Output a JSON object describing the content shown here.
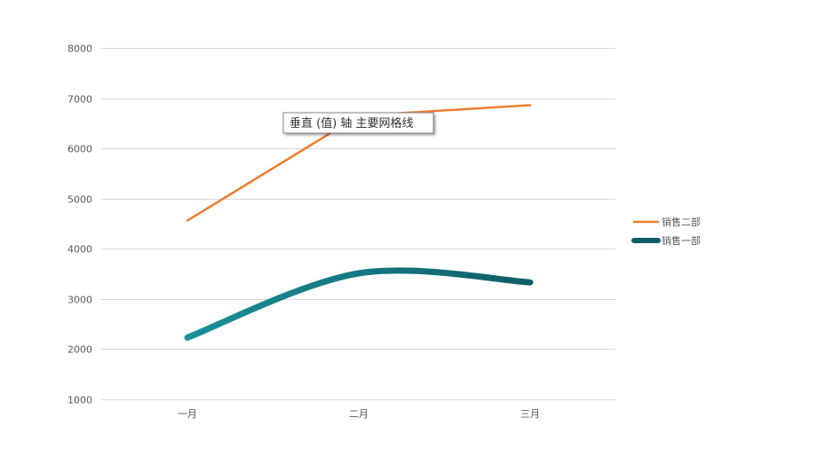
{
  "chart_data": {
    "type": "line",
    "categories": [
      "一月",
      "二月",
      "三月"
    ],
    "series": [
      {
        "name": "销售二部",
        "values": [
          4560,
          6650,
          6860
        ],
        "color": "#ED7D31",
        "smooth": false,
        "line_style": "thin"
      },
      {
        "name": "销售一部",
        "values": [
          2230,
          3510,
          3330
        ],
        "color_gradient": [
          "#1A8F9A",
          "#0E5E68"
        ],
        "smooth": true,
        "line_style": "thick"
      }
    ],
    "yticks": [
      1000,
      2000,
      3000,
      4000,
      5000,
      6000,
      7000,
      8000
    ],
    "ylim": [
      1000,
      8000
    ],
    "grid": true,
    "legend_position": "right",
    "title": "",
    "xlabel": "",
    "ylabel": ""
  },
  "tooltip": {
    "text": "垂直 (值) 轴 主要网格线"
  },
  "colors": {
    "gridline": "#D9D9D9",
    "axis_text": "#595959"
  }
}
